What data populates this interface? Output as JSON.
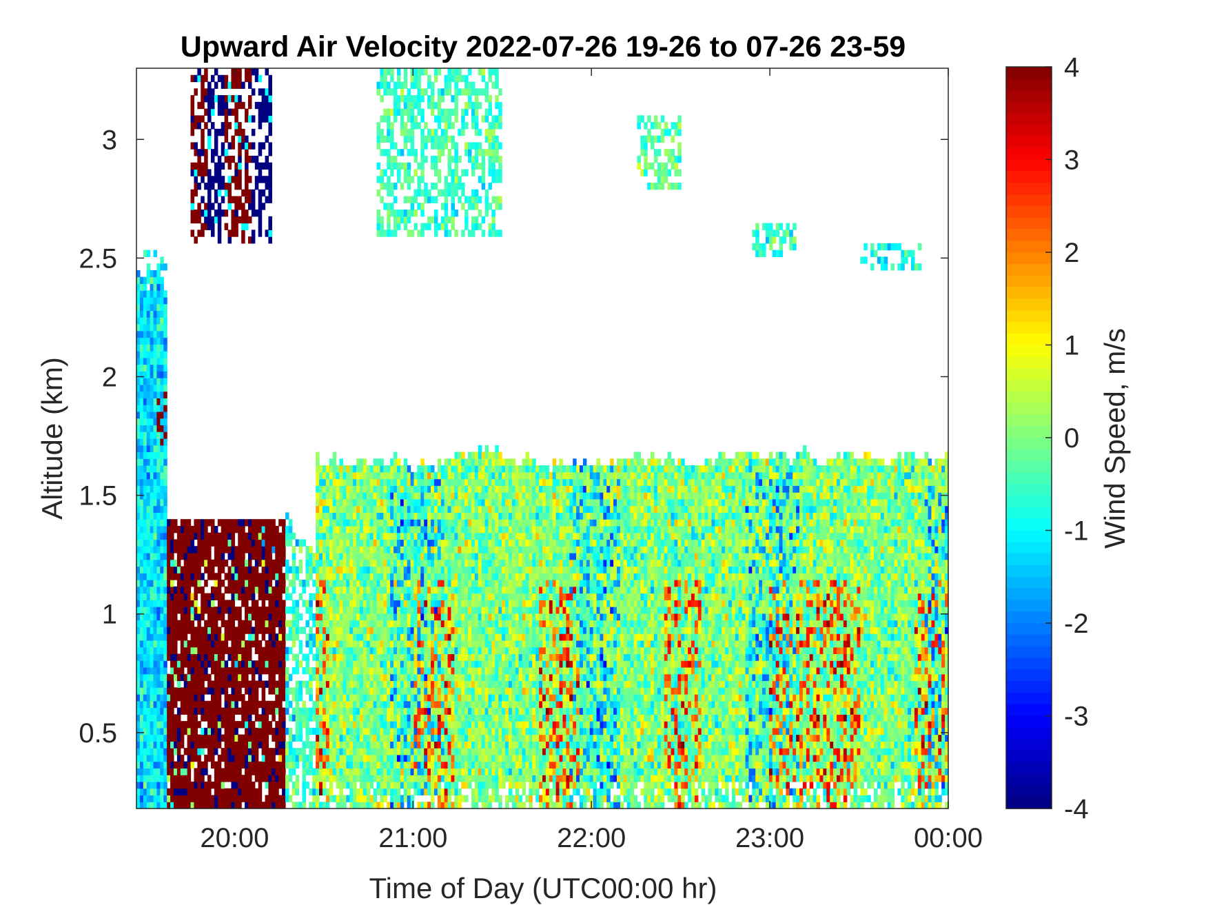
{
  "chart_data": {
    "type": "heatmap",
    "title": "Upward Air Velocity 2022-07-26 19-26 to 07-26 23-59",
    "xlabel": "Time of Day (UTC00:00 hr)",
    "ylabel": "Altitude (km)",
    "colorbar_label": "Wind Speed, m/s",
    "colormap": "jet",
    "clim": [
      -4,
      4
    ],
    "x_range_hours": [
      19.45,
      24.0
    ],
    "ylim": [
      0.18,
      3.3
    ],
    "x_ticks": [
      {
        "value": 20,
        "label": "20:00"
      },
      {
        "value": 21,
        "label": "21:00"
      },
      {
        "value": 22,
        "label": "22:00"
      },
      {
        "value": 23,
        "label": "23:00"
      },
      {
        "value": 24,
        "label": "00:00"
      }
    ],
    "y_ticks": [
      {
        "value": 0.5,
        "label": "0.5"
      },
      {
        "value": 1,
        "label": "1"
      },
      {
        "value": 1.5,
        "label": "1.5"
      },
      {
        "value": 2,
        "label": "2"
      },
      {
        "value": 2.5,
        "label": "2.5"
      },
      {
        "value": 3,
        "label": "3"
      }
    ],
    "colorbar_ticks": [
      {
        "value": 4,
        "label": "4"
      },
      {
        "value": 3,
        "label": "3"
      },
      {
        "value": 2,
        "label": "2"
      },
      {
        "value": 1,
        "label": "1"
      },
      {
        "value": 0,
        "label": "0"
      },
      {
        "value": -1,
        "label": "-1"
      },
      {
        "value": -2,
        "label": "-2"
      },
      {
        "value": -3,
        "label": "-3"
      },
      {
        "value": -4,
        "label": "-4"
      }
    ],
    "features": [
      {
        "name": "boundary layer",
        "t_start": 20.45,
        "t_end": 24.0,
        "alt_top_km": 1.65,
        "typical_speed_ms": 0.0
      },
      {
        "name": "strong updraft block",
        "t_start": 19.62,
        "t_end": 20.28,
        "alt_bottom_km": 0.2,
        "alt_top_km": 1.4,
        "typical_speed_ms": 4.0
      },
      {
        "name": "early column",
        "t_start": 19.45,
        "t_end": 19.62,
        "alt_bottom_km": 0.2,
        "alt_top_km": 2.45,
        "typical_speed_ms": -1.2
      },
      {
        "name": "upper updraft streaks",
        "t_start": 19.75,
        "t_end": 20.2,
        "alt_bottom_km": 2.55,
        "alt_top_km": 3.3,
        "typical_speed_ms": 4.0
      },
      {
        "name": "upper cloud 21:00",
        "t_start": 20.8,
        "t_end": 21.5,
        "alt_bottom_km": 2.6,
        "alt_top_km": 3.3,
        "typical_speed_ms": -0.5
      },
      {
        "name": "upper cloud 22:20",
        "t_start": 22.25,
        "t_end": 22.5,
        "alt_bottom_km": 2.8,
        "alt_top_km": 3.1,
        "typical_speed_ms": -0.3
      },
      {
        "name": "scattered 23:00",
        "t_start": 22.9,
        "t_end": 23.15,
        "alt_bottom_km": 2.5,
        "alt_top_km": 2.65,
        "typical_speed_ms": -0.6
      },
      {
        "name": "scattered 23:40",
        "t_start": 23.5,
        "t_end": 23.85,
        "alt_bottom_km": 2.45,
        "alt_top_km": 2.55,
        "typical_speed_ms": -0.8
      }
    ]
  }
}
